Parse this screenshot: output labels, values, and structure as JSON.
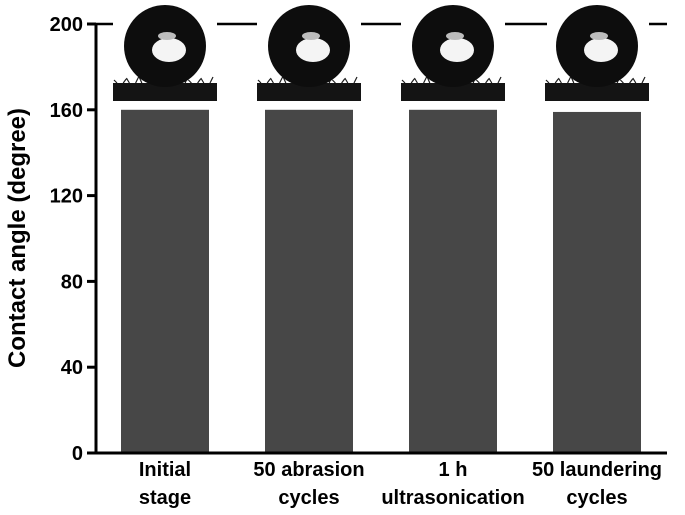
{
  "chart_data": {
    "type": "bar",
    "title": "",
    "xlabel": "",
    "ylabel": "Contact angle (degree)",
    "ylim": [
      0,
      200
    ],
    "yticks": [
      0,
      40,
      80,
      120,
      160,
      200
    ],
    "grid": false,
    "legend": "none",
    "categories": [
      [
        "Initial",
        "stage"
      ],
      [
        "50 abrasion",
        "cycles"
      ],
      [
        "1 h",
        "ultrasonication"
      ],
      [
        "50 laundering",
        "cycles"
      ]
    ],
    "values": [
      160,
      160,
      160,
      159
    ],
    "bar_color": "#474747",
    "insets": "water droplet photograph above each bar"
  }
}
